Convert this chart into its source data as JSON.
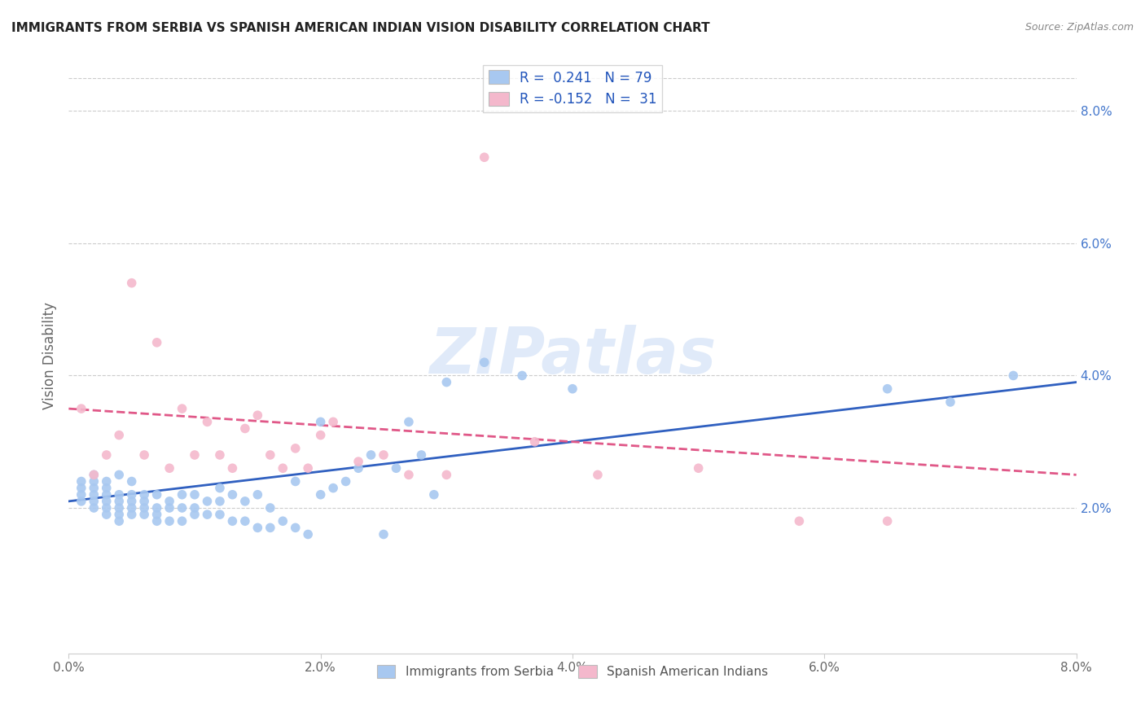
{
  "title": "IMMIGRANTS FROM SERBIA VS SPANISH AMERICAN INDIAN VISION DISABILITY CORRELATION CHART",
  "source": "Source: ZipAtlas.com",
  "ylabel": "Vision Disability",
  "right_yticks": [
    "2.0%",
    "4.0%",
    "6.0%",
    "8.0%"
  ],
  "right_ytick_vals": [
    0.02,
    0.04,
    0.06,
    0.08
  ],
  "xlim": [
    0.0,
    0.08
  ],
  "ylim": [
    -0.002,
    0.088
  ],
  "legend_blue_r": "0.241",
  "legend_blue_n": "79",
  "legend_pink_r": "-0.152",
  "legend_pink_n": "31",
  "legend_label_blue": "Immigrants from Serbia",
  "legend_label_pink": "Spanish American Indians",
  "blue_color": "#a8c8f0",
  "pink_color": "#f4b8cc",
  "blue_line_color": "#3060c0",
  "pink_line_color": "#e05888",
  "watermark_text": "ZIPatlas",
  "blue_scatter_x": [
    0.001,
    0.001,
    0.001,
    0.001,
    0.002,
    0.002,
    0.002,
    0.002,
    0.002,
    0.002,
    0.003,
    0.003,
    0.003,
    0.003,
    0.003,
    0.003,
    0.004,
    0.004,
    0.004,
    0.004,
    0.004,
    0.004,
    0.005,
    0.005,
    0.005,
    0.005,
    0.005,
    0.006,
    0.006,
    0.006,
    0.006,
    0.007,
    0.007,
    0.007,
    0.007,
    0.008,
    0.008,
    0.008,
    0.009,
    0.009,
    0.009,
    0.01,
    0.01,
    0.01,
    0.011,
    0.011,
    0.012,
    0.012,
    0.012,
    0.013,
    0.013,
    0.014,
    0.014,
    0.015,
    0.015,
    0.016,
    0.016,
    0.017,
    0.018,
    0.018,
    0.019,
    0.02,
    0.02,
    0.021,
    0.022,
    0.023,
    0.024,
    0.025,
    0.026,
    0.027,
    0.028,
    0.029,
    0.03,
    0.033,
    0.036,
    0.04,
    0.065,
    0.07,
    0.075
  ],
  "blue_scatter_y": [
    0.021,
    0.022,
    0.023,
    0.024,
    0.02,
    0.021,
    0.022,
    0.023,
    0.024,
    0.025,
    0.019,
    0.02,
    0.021,
    0.022,
    0.023,
    0.024,
    0.018,
    0.019,
    0.02,
    0.021,
    0.022,
    0.025,
    0.019,
    0.02,
    0.021,
    0.022,
    0.024,
    0.019,
    0.02,
    0.021,
    0.022,
    0.018,
    0.019,
    0.02,
    0.022,
    0.018,
    0.02,
    0.021,
    0.018,
    0.02,
    0.022,
    0.019,
    0.02,
    0.022,
    0.019,
    0.021,
    0.019,
    0.021,
    0.023,
    0.018,
    0.022,
    0.018,
    0.021,
    0.017,
    0.022,
    0.017,
    0.02,
    0.018,
    0.017,
    0.024,
    0.016,
    0.022,
    0.033,
    0.023,
    0.024,
    0.026,
    0.028,
    0.016,
    0.026,
    0.033,
    0.028,
    0.022,
    0.039,
    0.042,
    0.04,
    0.038,
    0.038,
    0.036,
    0.04
  ],
  "pink_scatter_x": [
    0.001,
    0.002,
    0.003,
    0.004,
    0.005,
    0.006,
    0.007,
    0.008,
    0.009,
    0.01,
    0.011,
    0.012,
    0.013,
    0.014,
    0.015,
    0.016,
    0.017,
    0.018,
    0.019,
    0.02,
    0.021,
    0.023,
    0.025,
    0.027,
    0.03,
    0.033,
    0.037,
    0.042,
    0.05,
    0.058,
    0.065
  ],
  "pink_scatter_y": [
    0.035,
    0.025,
    0.028,
    0.031,
    0.054,
    0.028,
    0.045,
    0.026,
    0.035,
    0.028,
    0.033,
    0.028,
    0.026,
    0.032,
    0.034,
    0.028,
    0.026,
    0.029,
    0.026,
    0.031,
    0.033,
    0.027,
    0.028,
    0.025,
    0.025,
    0.073,
    0.03,
    0.025,
    0.026,
    0.018,
    0.018
  ],
  "blue_line_x": [
    0.0,
    0.08
  ],
  "blue_line_y": [
    0.021,
    0.039
  ],
  "pink_line_x": [
    0.0,
    0.08
  ],
  "pink_line_y": [
    0.035,
    0.025
  ]
}
